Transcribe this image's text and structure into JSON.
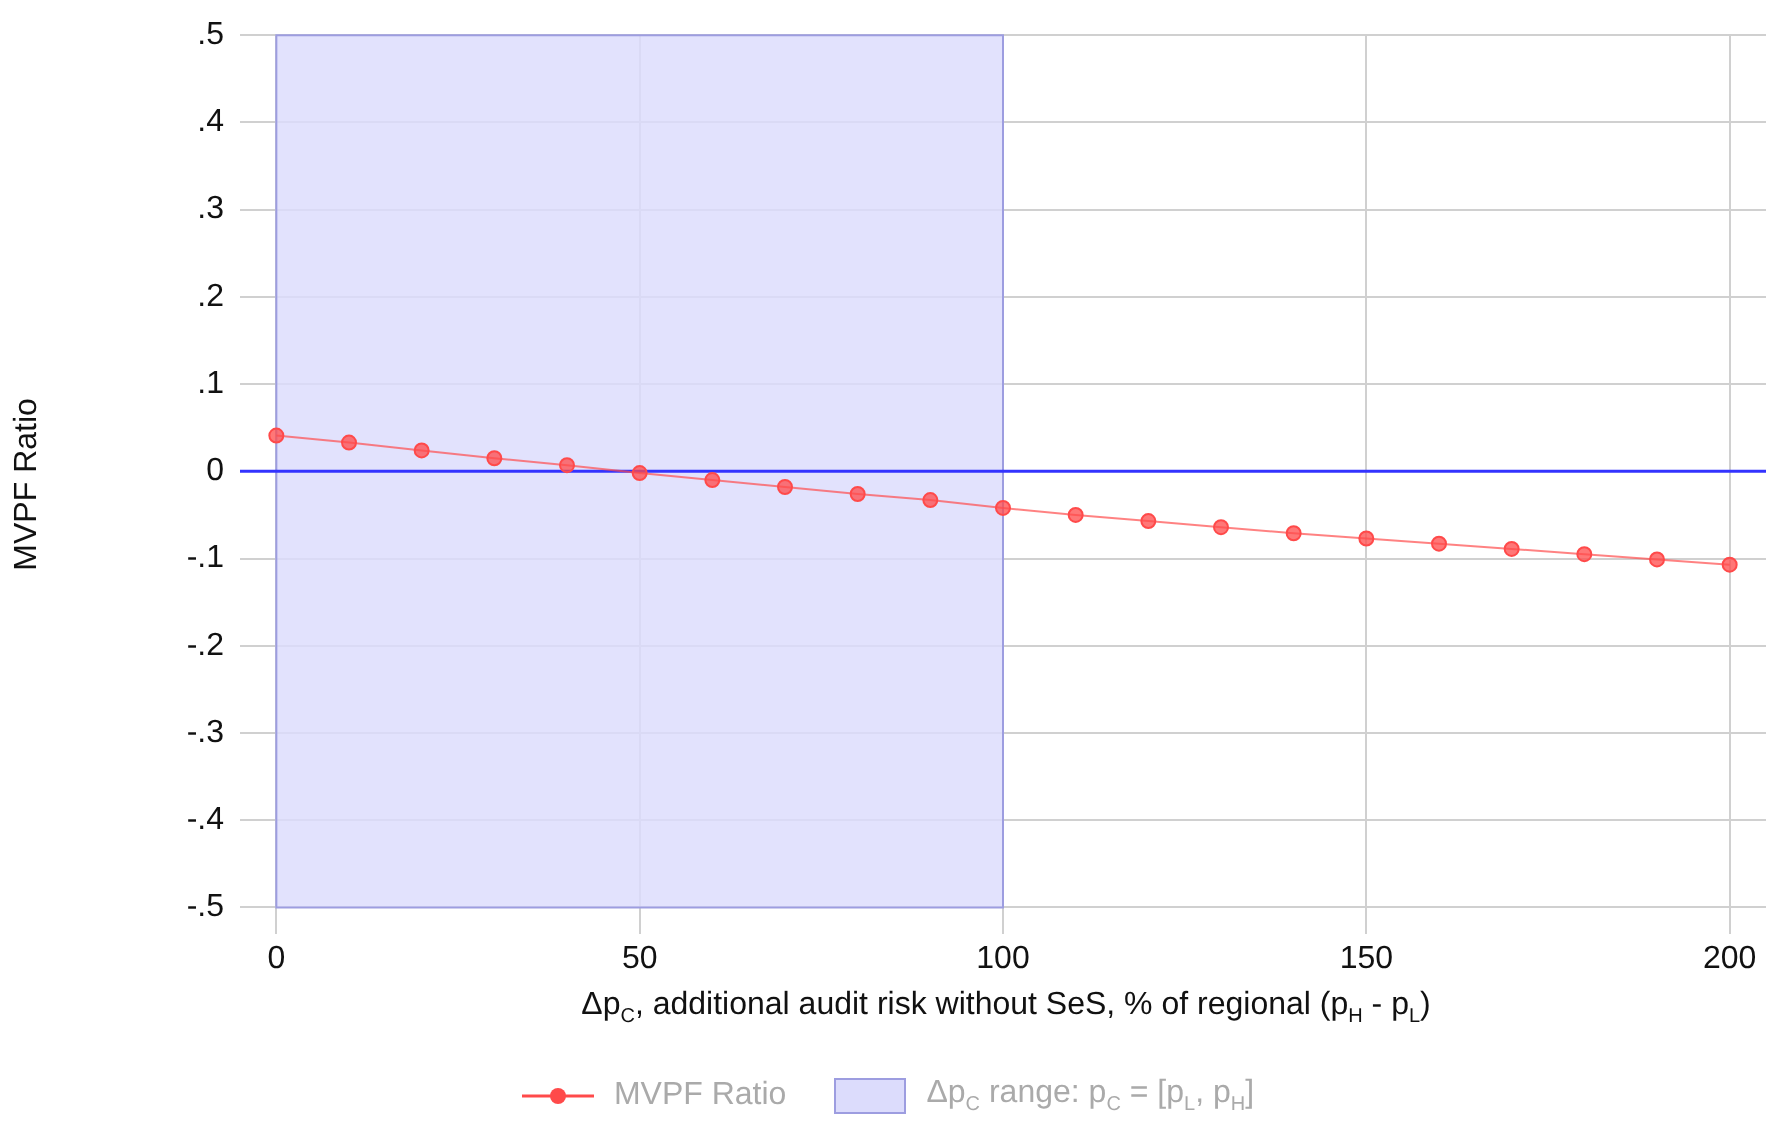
{
  "chart_data": {
    "type": "line",
    "xlabel": "Δp$_{C}$, additional audit risk without SeS, % of regional (p$_{H}$ - p$_{L}$)",
    "ylabel": "MVPF Ratio",
    "x": [
      0,
      10,
      20,
      30,
      40,
      50,
      60,
      70,
      80,
      90,
      100,
      110,
      120,
      130,
      140,
      150,
      160,
      170,
      180,
      190,
      200
    ],
    "series": [
      {
        "name": "MVPF Ratio",
        "color": "#ff4a4a",
        "values": [
          0.041,
          0.033,
          0.024,
          0.015,
          0.007,
          -0.002,
          -0.01,
          -0.018,
          -0.026,
          -0.033,
          -0.042,
          -0.05,
          -0.057,
          -0.064,
          -0.071,
          -0.077,
          -0.083,
          -0.089,
          -0.095,
          -0.101,
          -0.107
        ]
      }
    ],
    "xlim": [
      -5,
      205
    ],
    "xticks": [
      0,
      50,
      100,
      150,
      200
    ],
    "ylim": [
      -0.53,
      0.5
    ],
    "yticks": [
      {
        "value": -0.5,
        "label": "-.5"
      },
      {
        "value": -0.4,
        "label": "-.4"
      },
      {
        "value": -0.3,
        "label": "-.3"
      },
      {
        "value": -0.2,
        "label": "-.2"
      },
      {
        "value": -0.1,
        "label": "-.1"
      },
      {
        "value": 0,
        "label": "0"
      },
      {
        "value": 0.1,
        "label": ".1"
      },
      {
        "value": 0.2,
        "label": ".2"
      },
      {
        "value": 0.3,
        "label": ".3"
      },
      {
        "value": 0.4,
        "label": ".4"
      },
      {
        "value": 0.5,
        "label": ".5"
      }
    ],
    "ref_lines": [
      {
        "axis": "y",
        "value": 0,
        "color": "#3333ff"
      }
    ],
    "bands": [
      {
        "axis": "x",
        "from": 0,
        "to": 100,
        "label": "Δp$_{C}$ range: p$_{C}$ = [p$_{L}$, p$_{H}$]",
        "color": "#dcdcfc"
      }
    ],
    "grid": true,
    "legend": "bottom",
    "marker": "circle",
    "line_style": "solid"
  }
}
